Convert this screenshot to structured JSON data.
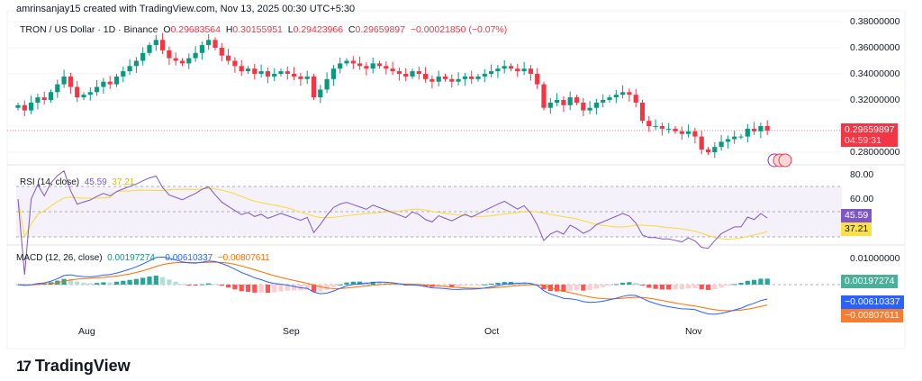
{
  "credit": "amrinsanjay15 created with TradingView.com, Nov 13, 2025 00:30 UTC+5:30",
  "header": {
    "symbol": "TRON / US Dollar · 1D · Binance",
    "o_label": "O",
    "o": "0.29683564",
    "h_label": "H",
    "h": "0.30155951",
    "l_label": "L",
    "l": "0.29423966",
    "c_label": "C",
    "c": "0.29659897",
    "change": "−0.00021850 (−0.07%)"
  },
  "price_axis": [
    "0.38000000",
    "0.36000000",
    "0.34000000",
    "0.32000000",
    "0.28000000"
  ],
  "price_tag": {
    "value": "0.29659897",
    "countdown": "04:59:31",
    "color": "#f23645"
  },
  "rsi": {
    "label": "RSI (14, close)",
    "value": "45.59",
    "ma": "37.21",
    "axis": [
      "80.00",
      "60.00"
    ],
    "color": "#7e57c2",
    "ma_color": "#fdd835"
  },
  "macd": {
    "label": "MACD (12, 26, close)",
    "hist": "0.00197274",
    "macd": "−0.00610337",
    "signal": "−0.00807611",
    "axis": [
      "0.01000000"
    ],
    "macd_color": "#2962ff",
    "signal_color": "#ff6d00"
  },
  "months": [
    "Aug",
    "Sep",
    "Oct",
    "Nov"
  ],
  "logo": "TradingView",
  "chart_data": {
    "type": "candlestick",
    "start_date": "2025-07-22",
    "end_date": "2025-11-13",
    "interval": "1D",
    "ylim": [
      0.275,
      0.385
    ],
    "up_color": "#089981",
    "down_color": "#f23645",
    "closes": [
      0.316,
      0.312,
      0.318,
      0.322,
      0.32,
      0.326,
      0.332,
      0.338,
      0.33,
      0.322,
      0.324,
      0.326,
      0.33,
      0.334,
      0.332,
      0.338,
      0.342,
      0.346,
      0.35,
      0.356,
      0.362,
      0.366,
      0.358,
      0.352,
      0.35,
      0.348,
      0.352,
      0.356,
      0.362,
      0.366,
      0.36,
      0.354,
      0.35,
      0.346,
      0.342,
      0.344,
      0.34,
      0.342,
      0.338,
      0.34,
      0.342,
      0.34,
      0.338,
      0.336,
      0.338,
      0.322,
      0.328,
      0.336,
      0.344,
      0.348,
      0.35,
      0.348,
      0.346,
      0.344,
      0.348,
      0.346,
      0.344,
      0.342,
      0.34,
      0.338,
      0.342,
      0.34,
      0.336,
      0.334,
      0.338,
      0.336,
      0.334,
      0.336,
      0.338,
      0.336,
      0.338,
      0.34,
      0.342,
      0.344,
      0.346,
      0.344,
      0.342,
      0.344,
      0.34,
      0.332,
      0.314,
      0.318,
      0.32,
      0.316,
      0.322,
      0.318,
      0.312,
      0.314,
      0.318,
      0.32,
      0.322,
      0.324,
      0.326,
      0.324,
      0.318,
      0.304,
      0.3,
      0.3,
      0.298,
      0.298,
      0.296,
      0.294,
      0.296,
      0.292,
      0.282,
      0.28,
      0.284,
      0.288,
      0.29,
      0.292,
      0.292,
      0.298,
      0.296,
      0.3,
      0.29659897
    ]
  }
}
